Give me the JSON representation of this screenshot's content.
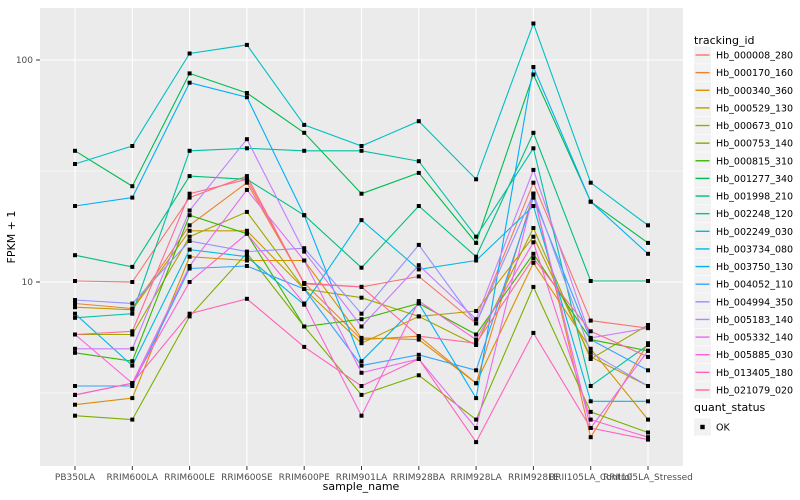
{
  "chart_data": {
    "type": "line",
    "title": "",
    "xlabel": "sample_name",
    "ylabel": "FPKM + 1",
    "y_scale": "log10",
    "y_tick_labels": [
      "100",
      "10"
    ],
    "y_tick_values": [
      100,
      10
    ],
    "y_minor_values": [
      31.62,
      3.162
    ],
    "ylim": [
      1.48,
      171
    ],
    "grid": "on",
    "legend_position": "right",
    "panel_bg": "#EBEBEB",
    "grid_color": "#FFFFFF",
    "axis_text_color": "#4D4D4D",
    "point_color": "#000000",
    "legend_key_bg": "#F2F2F2",
    "legend": {
      "color_title": "tracking_id",
      "shape_title": "quant_status",
      "shape_entries": [
        {
          "label": "OK"
        }
      ]
    },
    "categories": [
      "PB350LA",
      "RRIM600LA",
      "RRIM600LE",
      "RRIM600SE",
      "RRIM600PE",
      "RRIM901LA",
      "RRIM928BA",
      "RRIM928LA",
      "RRIM928LE",
      "RRII105LA_Control",
      "RRII105LA_Stressed"
    ],
    "series": [
      {
        "name": "Hb_000008_280",
        "color": "#F8766D",
        "values": [
          10.1,
          10.0,
          24,
          30,
          9.8,
          9.5,
          10.6,
          6.5,
          28,
          6.7,
          6.2
        ]
      },
      {
        "name": "Hb_000170_160",
        "color": "#EA8331",
        "values": [
          8.0,
          7.6,
          18,
          28,
          9.9,
          5.5,
          5.7,
          3.5,
          25,
          2.0,
          5.3
        ]
      },
      {
        "name": "Hb_000340_360",
        "color": "#D89000",
        "values": [
          2.8,
          3.0,
          13,
          12.5,
          12.5,
          5.6,
          5.5,
          3.5,
          12.2,
          5.0,
          2.4
        ]
      },
      {
        "name": "Hb_000529_130",
        "color": "#C09B00",
        "values": [
          7.7,
          7.5,
          17,
          17,
          9.3,
          5.3,
          7.0,
          7.4,
          16,
          4.6,
          3.4
        ]
      },
      {
        "name": "Hb_000673_010",
        "color": "#A3A500",
        "values": [
          5.8,
          5.8,
          16,
          20.7,
          9.3,
          8.5,
          7.0,
          5.2,
          17.5,
          4.5,
          6.4
        ]
      },
      {
        "name": "Hb_000753_140",
        "color": "#7CAE00",
        "values": [
          2.5,
          2.4,
          7.0,
          13.5,
          6.3,
          3.1,
          3.8,
          2.4,
          9.5,
          2.6,
          2.1
        ]
      },
      {
        "name": "Hb_000815_310",
        "color": "#39B600",
        "values": [
          4.8,
          4.4,
          20,
          16.5,
          6.3,
          6.8,
          8.0,
          5.8,
          13.4,
          5.5,
          4.9
        ]
      },
      {
        "name": "Hb_001277_340",
        "color": "#00BB4E",
        "values": [
          39,
          27,
          87,
          71,
          47,
          25,
          31,
          15,
          86,
          23,
          15
        ]
      },
      {
        "name": "Hb_001998_210",
        "color": "#00BF7D",
        "values": [
          13.2,
          11.7,
          30,
          29,
          20,
          11.6,
          22,
          13,
          47,
          10.1,
          10.1
        ]
      },
      {
        "name": "Hb_002248_120",
        "color": "#00C1A3",
        "values": [
          6.9,
          7.2,
          39,
          40,
          39,
          39,
          35,
          16,
          40,
          3.4,
          5.2
        ]
      },
      {
        "name": "Hb_002249_030",
        "color": "#00BFC4",
        "values": [
          34,
          41,
          107,
          117,
          51,
          41,
          53,
          29,
          146,
          28,
          18
        ]
      },
      {
        "name": "Hb_003734_080",
        "color": "#00BAE0",
        "values": [
          7.2,
          4.2,
          14,
          13,
          7.9,
          19,
          11.4,
          12.5,
          22,
          2.9,
          2.9
        ]
      },
      {
        "name": "Hb_003750_130",
        "color": "#00B0F6",
        "values": [
          22,
          24,
          79,
          68,
          20,
          4.4,
          8.0,
          3.0,
          93,
          23,
          13.4
        ]
      },
      {
        "name": "Hb_004052_110",
        "color": "#35A2FF",
        "values": [
          3.4,
          3.4,
          11.5,
          11.8,
          9.3,
          4.2,
          4.7,
          4.0,
          24,
          5.5,
          4.0
        ]
      },
      {
        "name": "Hb_004994_350",
        "color": "#9590FF",
        "values": [
          8.3,
          8.0,
          15.3,
          13.7,
          14.2,
          7.2,
          14.7,
          6.5,
          25,
          4.8,
          3.4
        ]
      },
      {
        "name": "Hb_005183_140",
        "color": "#C77CFF",
        "values": [
          5.0,
          5.0,
          21,
          44,
          13.7,
          6.3,
          11.9,
          6.8,
          32,
          5.6,
          6.2
        ]
      },
      {
        "name": "Hb_005332_140",
        "color": "#E76BF3",
        "values": [
          3.1,
          3.5,
          11.8,
          26,
          12.5,
          3.9,
          4.5,
          2.2,
          25,
          2.2,
          4.9
        ]
      },
      {
        "name": "Hb_005885_030",
        "color": "#FA62DB",
        "values": [
          5.8,
          3.5,
          10,
          16.5,
          8.0,
          2.5,
          8.2,
          5.5,
          15.1,
          2.4,
          2.0
        ]
      },
      {
        "name": "Hb_013405_180",
        "color": "#FF62BC",
        "values": [
          3.1,
          3.5,
          7.2,
          8.4,
          5.1,
          3.4,
          4.5,
          1.9,
          5.9,
          2.2,
          1.95
        ]
      },
      {
        "name": "Hb_021079_020",
        "color": "#FF6A98",
        "values": [
          5.8,
          6.0,
          25,
          29,
          9.9,
          9.5,
          5.7,
          5.3,
          12.8,
          6.0,
          4.6
        ]
      }
    ]
  }
}
